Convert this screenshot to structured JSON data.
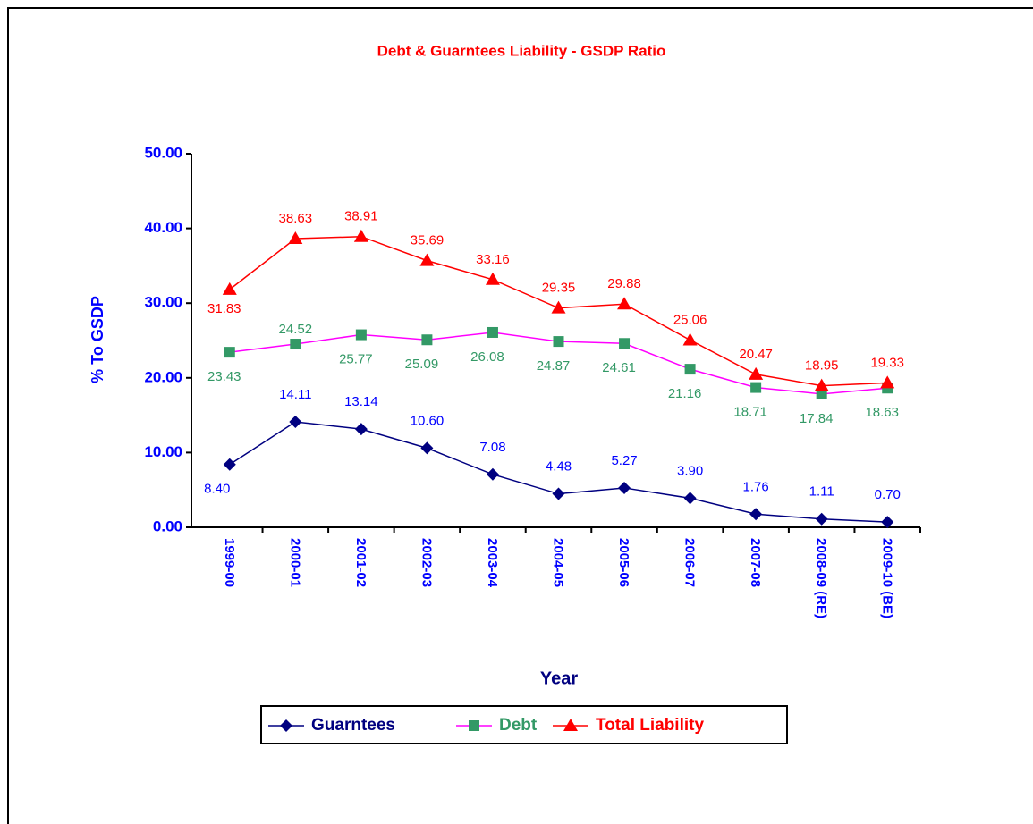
{
  "chart_data": {
    "type": "line",
    "title": "Debt & Guarntees Liability - GSDP Ratio",
    "x_label": "Year",
    "y_label": "% To GSDP",
    "categories": [
      "1999-00",
      "2000-01",
      "2001-02",
      "2002-03",
      "2003-04",
      "2004-05",
      "2005-06",
      "2006-07",
      "2007-08",
      "2008-09 (RE)",
      "2009-10 (BE)"
    ],
    "ylim": [
      0,
      50
    ],
    "yticks": [
      {
        "value": 0,
        "label": "0.00"
      },
      {
        "value": 10,
        "label": "10.00"
      },
      {
        "value": 20,
        "label": "20.00"
      },
      {
        "value": 30,
        "label": "30.00"
      },
      {
        "value": 40,
        "label": "40.00"
      },
      {
        "value": 50,
        "label": "50.00"
      }
    ],
    "legend": "bottom",
    "series": [
      {
        "name": "Guarntees",
        "color": "#000080",
        "marker_color": "#000080",
        "label_color": "#0000ff",
        "marker": "diamond",
        "values": [
          8.4,
          14.11,
          13.14,
          10.6,
          7.08,
          4.48,
          5.27,
          3.9,
          1.76,
          1.11,
          0.7
        ],
        "value_labels": [
          "8.40",
          "14.11",
          "13.14",
          "10.60",
          "7.08",
          "4.48",
          "5.27",
          "3.90",
          "1.76",
          "1.11",
          "0.70"
        ]
      },
      {
        "name": "Debt",
        "color": "#ff00ff",
        "marker_color": "#339966",
        "label_color": "#339966",
        "marker": "square",
        "values": [
          23.43,
          24.52,
          25.77,
          25.09,
          26.08,
          24.87,
          24.61,
          21.16,
          18.71,
          17.84,
          18.63
        ],
        "value_labels": [
          "23.43",
          "24.52",
          "25.77",
          "25.09",
          "26.08",
          "24.87",
          "24.61",
          "21.16",
          "18.71",
          "17.84",
          "18.63"
        ]
      },
      {
        "name": "Total Liability",
        "color": "#ff0000",
        "marker_color": "#ff0000",
        "label_color": "#ff0000",
        "marker": "triangle",
        "values": [
          31.83,
          38.63,
          38.91,
          35.69,
          33.16,
          29.35,
          29.88,
          25.06,
          20.47,
          18.95,
          19.33
        ],
        "value_labels": [
          "31.83",
          "38.63",
          "38.91",
          "35.69",
          "33.16",
          "29.35",
          "29.88",
          "25.06",
          "20.47",
          "18.95",
          "19.33"
        ]
      }
    ]
  }
}
